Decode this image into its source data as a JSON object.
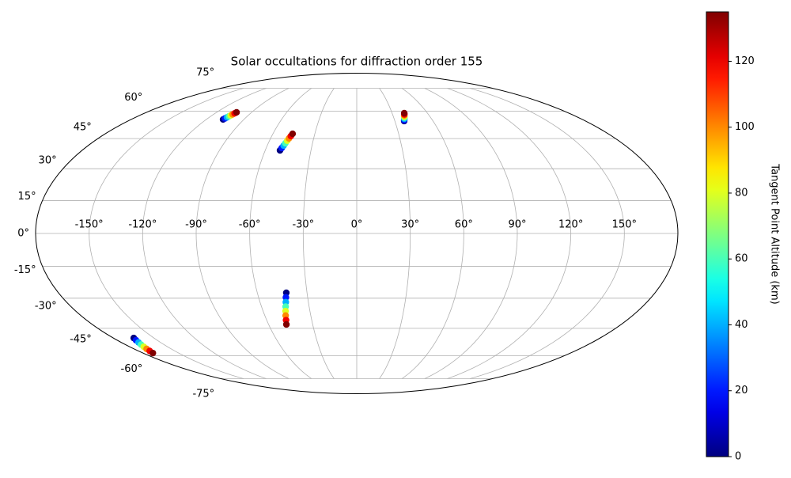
{
  "chart_data": {
    "type": "scatter",
    "projection": "mollweide",
    "title": "Solar occultations for diffraction order 155",
    "grid": true,
    "xlim": [
      -180,
      180
    ],
    "ylim": [
      -90,
      90
    ],
    "xticks": [
      {
        "value": -150,
        "label": "-150°"
      },
      {
        "value": -120,
        "label": "-120°"
      },
      {
        "value": -90,
        "label": "-90°"
      },
      {
        "value": -60,
        "label": "-60°"
      },
      {
        "value": -30,
        "label": "-30°"
      },
      {
        "value": 0,
        "label": "0°"
      },
      {
        "value": 30,
        "label": "30°"
      },
      {
        "value": 60,
        "label": "60°"
      },
      {
        "value": 90,
        "label": "90°"
      },
      {
        "value": 120,
        "label": "120°"
      },
      {
        "value": 150,
        "label": "150°"
      }
    ],
    "yticks": [
      {
        "value": -75,
        "label": "-75°"
      },
      {
        "value": -60,
        "label": "-60°"
      },
      {
        "value": -45,
        "label": "-45°"
      },
      {
        "value": -30,
        "label": "-30°"
      },
      {
        "value": -15,
        "label": "-15°"
      },
      {
        "value": 0,
        "label": "0°"
      },
      {
        "value": 15,
        "label": "15°"
      },
      {
        "value": 30,
        "label": "30°"
      },
      {
        "value": 45,
        "label": "45°"
      },
      {
        "value": 60,
        "label": "60°"
      },
      {
        "value": 75,
        "label": "75°"
      }
    ],
    "colorbar": {
      "label": "Tangent Point Altitude (km)",
      "cmap": "jet",
      "lim": [
        0,
        135
      ],
      "ticks": [
        0,
        20,
        40,
        60,
        80,
        100,
        120
      ]
    },
    "series": [
      {
        "x": [
          -106.6,
          -106.1,
          -105.5,
          -105.0,
          -104.5,
          -104.0,
          -103.4,
          -102.9
        ],
        "y": [
          55.3,
          55.9,
          56.5,
          57.1,
          57.6,
          58.2,
          58.8,
          59.4
        ],
        "c": [
          0,
          20,
          40,
          60,
          80,
          100,
          120,
          135
        ]
      },
      {
        "x": [
          -50.3,
          -49.7,
          -49.0,
          -48.4,
          -47.8,
          -47.2,
          -46.5,
          -45.9
        ],
        "y": [
          39.0,
          40.2,
          41.4,
          42.6,
          43.9,
          45.1,
          46.3,
          47.5
        ],
        "c": [
          0,
          20,
          40,
          60,
          80,
          100,
          120,
          135
        ]
      },
      {
        "x": [
          37.3,
          37.7,
          38.2,
          38.6,
          39.0,
          39.4,
          39.9,
          40.3
        ],
        "y": [
          54.4,
          55.0,
          55.7,
          56.3,
          56.9,
          57.6,
          58.2,
          58.9
        ],
        "c": [
          0,
          20,
          40,
          60,
          80,
          100,
          120,
          135
        ]
      },
      {
        "x": [
          -42.5,
          -43.3,
          -44.0,
          -44.8,
          -45.6,
          -46.4,
          -47.1,
          -47.9
        ],
        "y": [
          -27.4,
          -29.6,
          -31.9,
          -34.1,
          -36.3,
          -38.5,
          -40.8,
          -43.0
        ],
        "c": [
          0,
          20,
          40,
          60,
          80,
          100,
          120,
          135
        ]
      },
      {
        "x": [
          -164.9,
          -165.9,
          -166.8,
          -167.8,
          -168.8,
          -169.8,
          -170.7,
          -171.7
        ],
        "y": [
          -50.1,
          -51.3,
          -52.5,
          -53.7,
          -54.9,
          -56.1,
          -57.3,
          -58.5
        ],
        "c": [
          0,
          20,
          40,
          60,
          80,
          100,
          120,
          135
        ]
      }
    ]
  }
}
